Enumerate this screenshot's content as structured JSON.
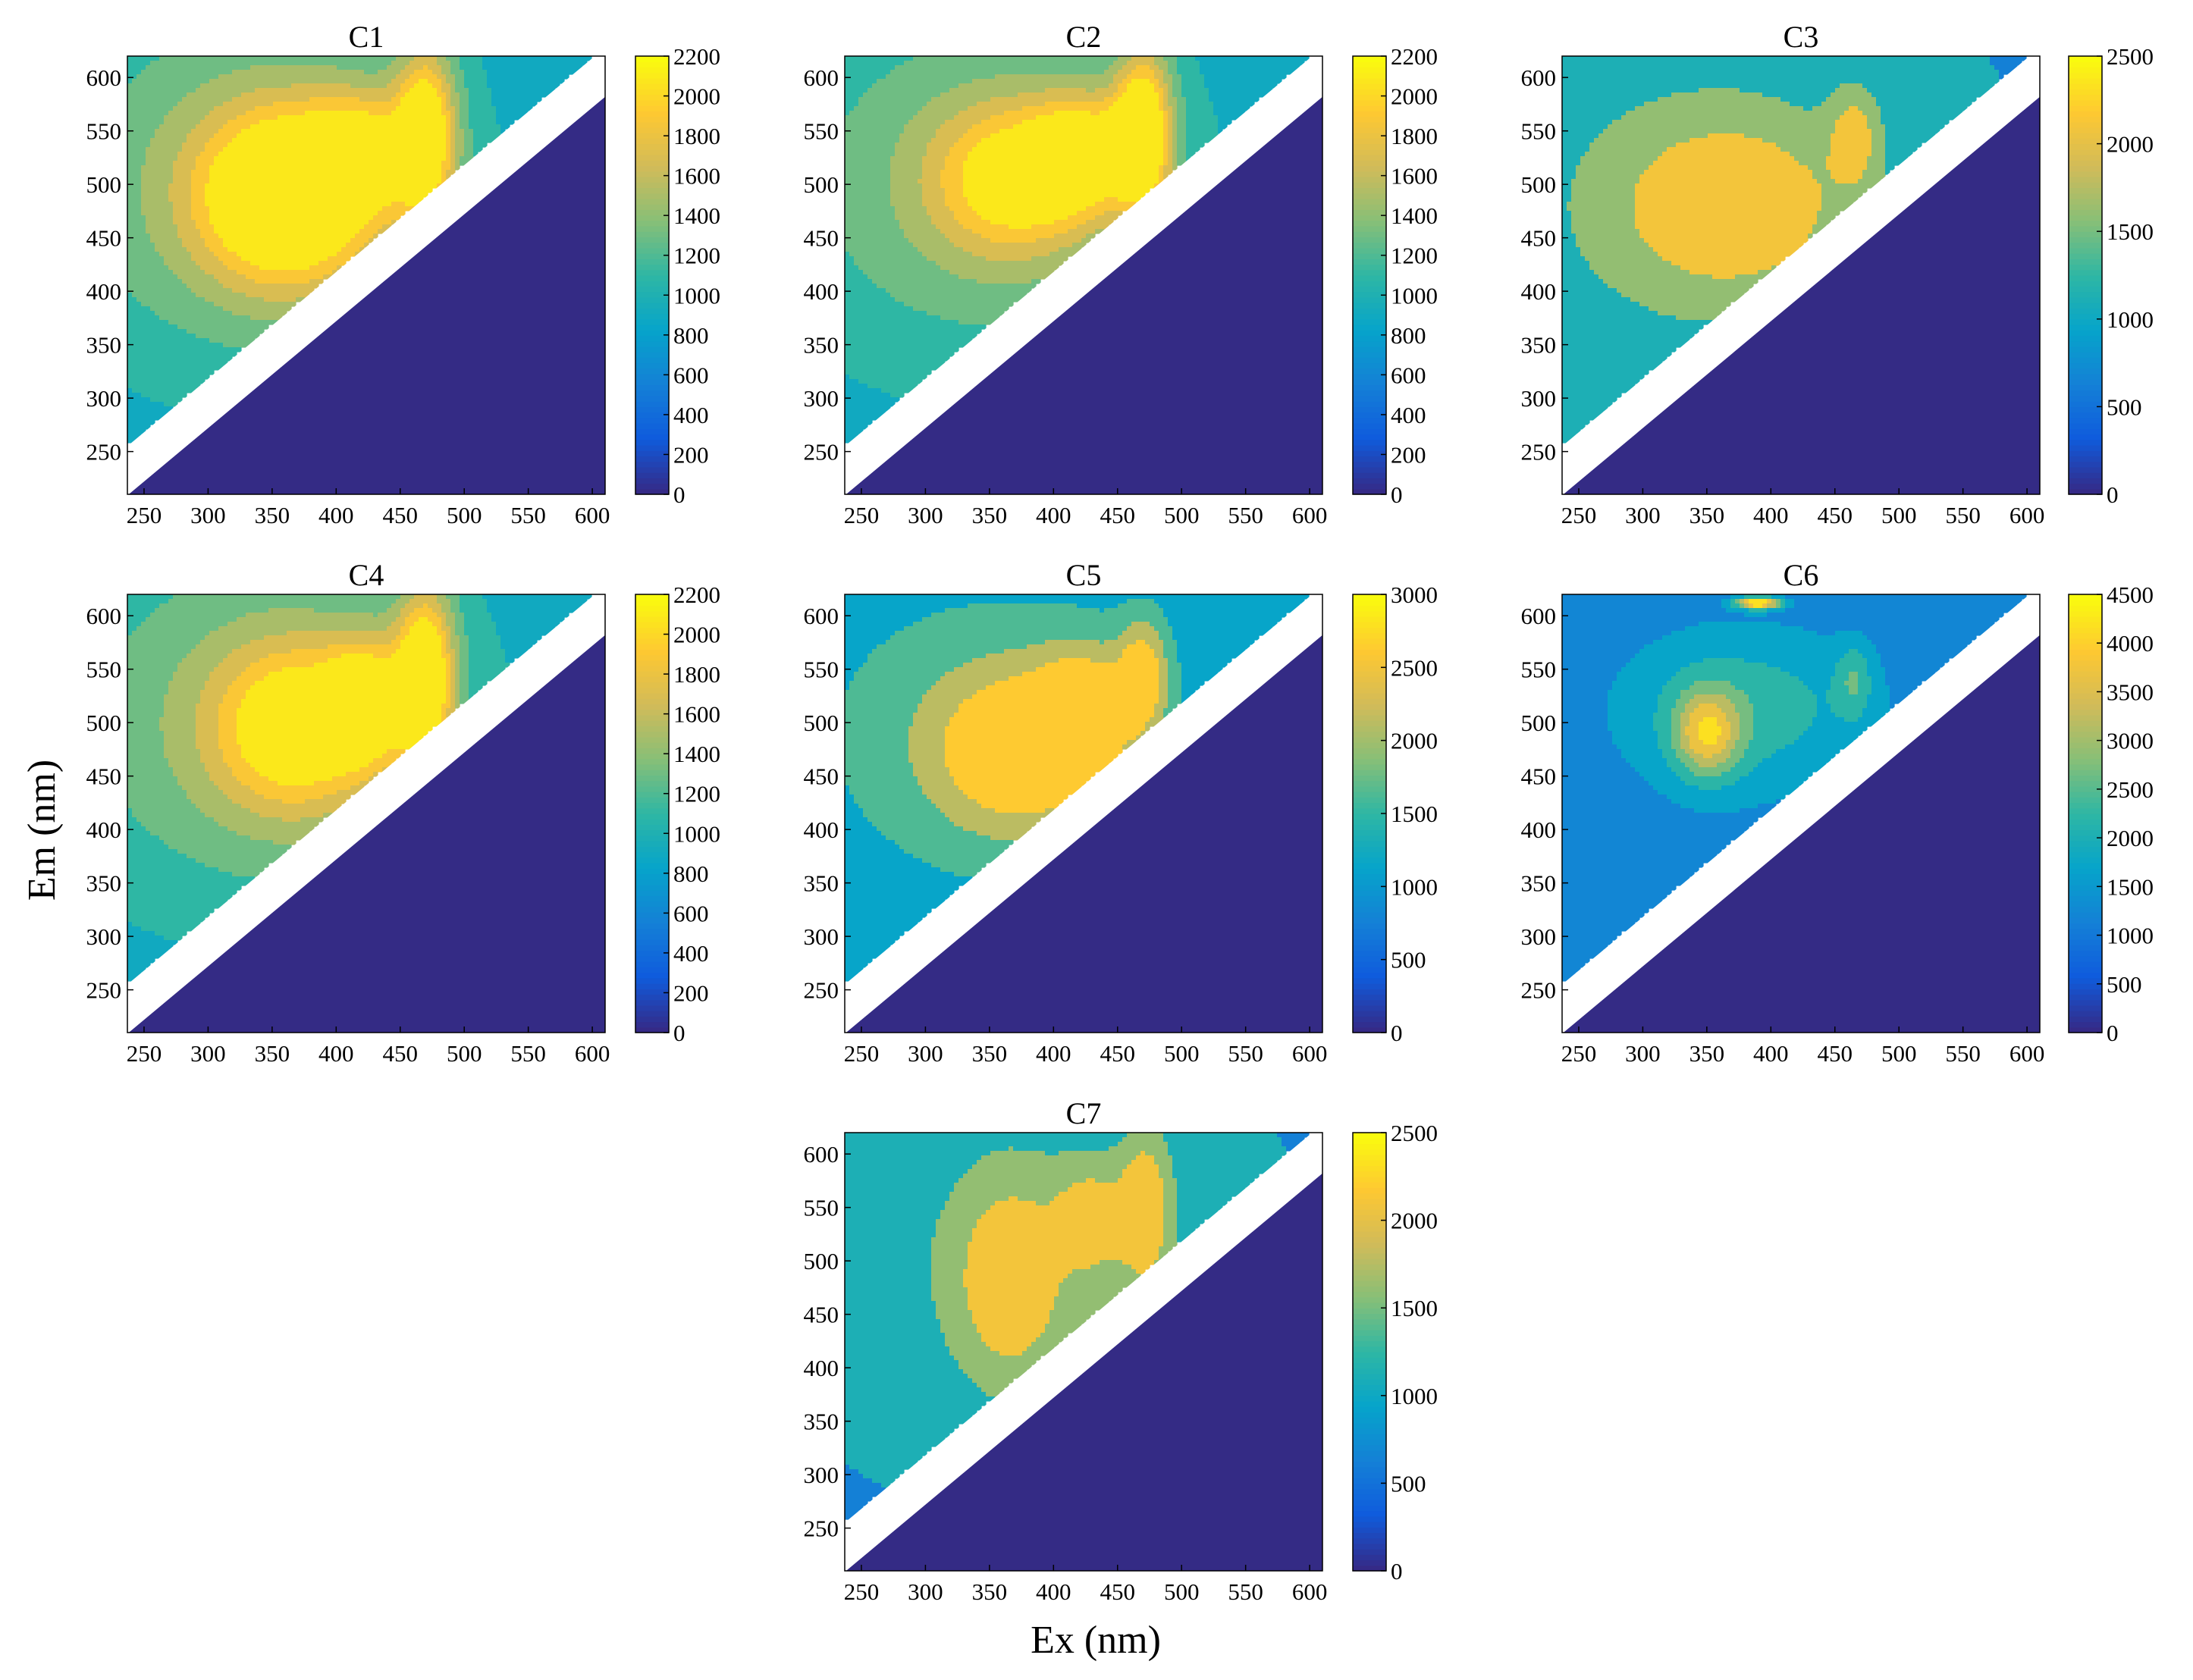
{
  "figure": {
    "xlabel": "Ex (nm)",
    "ylabel": "Em (nm)"
  },
  "colors": {
    "colormap": [
      "#352a87",
      "#0f5cdd",
      "#1481d6",
      "#06a4ca",
      "#2eb7a4",
      "#87bf77",
      "#d1bb59",
      "#fec832",
      "#f9fb0e"
    ],
    "masked_region": "#342b85",
    "gap_band": "#ffffff",
    "contour_line": "#1a1a1a"
  },
  "chart_data": [
    {
      "type": "heatmap",
      "subtype": "contour (EEM fluorescence component)",
      "title": "C1",
      "xlim": [
        237,
        610
      ],
      "ylim": [
        210,
        620
      ],
      "xticks": [
        "250",
        "300",
        "350",
        "400",
        "450",
        "500",
        "550",
        "600"
      ],
      "yticks": [
        "250",
        "300",
        "350",
        "400",
        "450",
        "500",
        "550",
        "600"
      ],
      "xtick_values": [
        250,
        300,
        350,
        400,
        450,
        500,
        550,
        600
      ],
      "ytick_values": [
        250,
        300,
        350,
        400,
        450,
        500,
        550,
        600
      ],
      "colorbar": {
        "min": 0,
        "max": 2200,
        "ticks": [
          "0",
          "200",
          "400",
          "600",
          "800",
          "1000",
          "1200",
          "1400",
          "1600",
          "1800",
          "2000",
          "2200"
        ],
        "tick_values": [
          0,
          200,
          400,
          600,
          800,
          1000,
          1200,
          1400,
          1600,
          1800,
          2000,
          2200
        ]
      },
      "base_level": 850,
      "peaks": [
        {
          "ex": 362,
          "em": 488,
          "value": 2220,
          "sx": 48,
          "sy": 58
        },
        {
          "ex": 470,
          "em": 548,
          "value": 2080,
          "sx": 17,
          "sy": 58
        },
        {
          "ex": 420,
          "em": 530,
          "value": 1620,
          "sx": 28,
          "sy": 40
        },
        {
          "ex": 330,
          "em": 500,
          "value": 1450,
          "sx": 120,
          "sy": 130
        }
      ]
    },
    {
      "type": "heatmap",
      "subtype": "contour (EEM fluorescence component)",
      "title": "C2",
      "xlim": [
        237,
        610
      ],
      "ylim": [
        210,
        620
      ],
      "xticks": [
        "250",
        "300",
        "350",
        "400",
        "450",
        "500",
        "550",
        "600"
      ],
      "yticks": [
        "250",
        "300",
        "350",
        "400",
        "450",
        "500",
        "550",
        "600"
      ],
      "xtick_values": [
        250,
        300,
        350,
        400,
        450,
        500,
        550,
        600
      ],
      "ytick_values": [
        250,
        300,
        350,
        400,
        450,
        500,
        550,
        600
      ],
      "colorbar": {
        "min": 0,
        "max": 2200,
        "ticks": [
          "0",
          "200",
          "400",
          "600",
          "800",
          "1000",
          "1200",
          "1400",
          "1600",
          "1800",
          "2000",
          "2200"
        ],
        "tick_values": [
          0,
          200,
          400,
          600,
          800,
          1000,
          1200,
          1400,
          1600,
          1800,
          2000,
          2200
        ]
      },
      "base_level": 850,
      "peaks": [
        {
          "ex": 370,
          "em": 505,
          "value": 1780,
          "sx": 45,
          "sy": 50
        },
        {
          "ex": 470,
          "em": 550,
          "value": 2150,
          "sx": 16,
          "sy": 55
        },
        {
          "ex": 425,
          "em": 530,
          "value": 1750,
          "sx": 28,
          "sy": 38
        },
        {
          "ex": 340,
          "em": 500,
          "value": 1400,
          "sx": 120,
          "sy": 130
        }
      ]
    },
    {
      "type": "heatmap",
      "subtype": "contour (EEM fluorescence component)",
      "title": "C3",
      "xlim": [
        237,
        610
      ],
      "ylim": [
        210,
        620
      ],
      "xticks": [
        "250",
        "300",
        "350",
        "400",
        "450",
        "500",
        "550",
        "600"
      ],
      "yticks": [
        "250",
        "300",
        "350",
        "400",
        "450",
        "500",
        "550",
        "600"
      ],
      "xtick_values": [
        250,
        300,
        350,
        400,
        450,
        500,
        550,
        600
      ],
      "ytick_values": [
        250,
        300,
        350,
        400,
        450,
        500,
        550,
        600
      ],
      "colorbar": {
        "min": 0,
        "max": 2500,
        "ticks": [
          "0",
          "500",
          "1000",
          "1500",
          "2000",
          "2500"
        ],
        "tick_values": [
          0,
          500,
          1000,
          1500,
          2000,
          2500
        ]
      },
      "base_level": 950,
      "peaks": [
        {
          "ex": 370,
          "em": 480,
          "value": 2100,
          "sx": 60,
          "sy": 55
        },
        {
          "ex": 465,
          "em": 545,
          "value": 1950,
          "sx": 14,
          "sy": 32
        },
        {
          "ex": 340,
          "em": 480,
          "value": 1550,
          "sx": 120,
          "sy": 120
        }
      ]
    },
    {
      "type": "heatmap",
      "subtype": "contour (EEM fluorescence component)",
      "title": "C4",
      "xlim": [
        237,
        610
      ],
      "ylim": [
        210,
        620
      ],
      "xticks": [
        "250",
        "300",
        "350",
        "400",
        "450",
        "500",
        "550",
        "600"
      ],
      "yticks": [
        "250",
        "300",
        "350",
        "400",
        "450",
        "500",
        "550",
        "600"
      ],
      "xtick_values": [
        250,
        300,
        350,
        400,
        450,
        500,
        550,
        600
      ],
      "ytick_values": [
        250,
        300,
        350,
        400,
        450,
        500,
        550,
        600
      ],
      "colorbar": {
        "min": 0,
        "max": 2200,
        "ticks": [
          "0",
          "200",
          "400",
          "600",
          "800",
          "1000",
          "1200",
          "1400",
          "1600",
          "1800",
          "2000",
          "2200"
        ],
        "tick_values": [
          0,
          200,
          400,
          600,
          800,
          1000,
          1200,
          1400,
          1600,
          1800,
          2000,
          2200
        ]
      },
      "base_level": 850,
      "peaks": [
        {
          "ex": 370,
          "em": 495,
          "value": 1850,
          "sx": 45,
          "sy": 55
        },
        {
          "ex": 470,
          "em": 545,
          "value": 2150,
          "sx": 16,
          "sy": 58
        },
        {
          "ex": 425,
          "em": 520,
          "value": 1750,
          "sx": 22,
          "sy": 40
        },
        {
          "ex": 340,
          "em": 500,
          "value": 1450,
          "sx": 120,
          "sy": 130
        }
      ]
    },
    {
      "type": "heatmap",
      "subtype": "contour (EEM fluorescence component)",
      "title": "C5",
      "xlim": [
        237,
        610
      ],
      "ylim": [
        210,
        620
      ],
      "xticks": [
        "250",
        "300",
        "350",
        "400",
        "450",
        "500",
        "550",
        "600"
      ],
      "yticks": [
        "250",
        "300",
        "350",
        "400",
        "450",
        "500",
        "550",
        "600"
      ],
      "xtick_values": [
        250,
        300,
        350,
        400,
        450,
        500,
        550,
        600
      ],
      "ytick_values": [
        250,
        300,
        350,
        400,
        450,
        500,
        550,
        600
      ],
      "colorbar": {
        "min": 0,
        "max": 3000,
        "ticks": [
          "0",
          "500",
          "1000",
          "1500",
          "2000",
          "2500",
          "3000"
        ],
        "tick_values": [
          0,
          500,
          1000,
          1500,
          2000,
          2500,
          3000
        ]
      },
      "base_level": 950,
      "peaks": [
        {
          "ex": 375,
          "em": 475,
          "value": 2650,
          "sx": 50,
          "sy": 55
        },
        {
          "ex": 470,
          "em": 545,
          "value": 2450,
          "sx": 14,
          "sy": 38
        },
        {
          "ex": 425,
          "em": 515,
          "value": 2250,
          "sx": 25,
          "sy": 40
        },
        {
          "ex": 340,
          "em": 490,
          "value": 1700,
          "sx": 130,
          "sy": 130
        }
      ]
    },
    {
      "type": "heatmap",
      "subtype": "contour (EEM fluorescence component)",
      "title": "C6",
      "xlim": [
        237,
        610
      ],
      "ylim": [
        210,
        620
      ],
      "xticks": [
        "250",
        "300",
        "350",
        "400",
        "450",
        "500",
        "550",
        "600"
      ],
      "yticks": [
        "250",
        "300",
        "350",
        "400",
        "450",
        "500",
        "550",
        "600"
      ],
      "xtick_values": [
        250,
        300,
        350,
        400,
        450,
        500,
        550,
        600
      ],
      "ytick_values": [
        250,
        300,
        350,
        400,
        450,
        500,
        550,
        600
      ],
      "colorbar": {
        "min": 0,
        "max": 4500,
        "ticks": [
          "0",
          "500",
          "1000",
          "1500",
          "2000",
          "2500",
          "3000",
          "3500",
          "4000",
          "4500"
        ],
        "tick_values": [
          0,
          500,
          1000,
          1500,
          2000,
          2500,
          3000,
          3500,
          4000,
          4500
        ]
      },
      "base_level": 1050,
      "peaks": [
        {
          "ex": 350,
          "em": 490,
          "value": 3150,
          "sx": 18,
          "sy": 28
        },
        {
          "ex": 390,
          "em": 612,
          "value": 4500,
          "sx": 12,
          "sy": 4
        },
        {
          "ex": 465,
          "em": 540,
          "value": 1980,
          "sx": 10,
          "sy": 25
        },
        {
          "ex": 365,
          "em": 500,
          "value": 1750,
          "sx": 70,
          "sy": 70
        },
        {
          "ex": 400,
          "em": 520,
          "value": 1650,
          "sx": 80,
          "sy": 50
        }
      ]
    },
    {
      "type": "heatmap",
      "subtype": "contour (EEM fluorescence component)",
      "title": "C7",
      "xlim": [
        237,
        610
      ],
      "ylim": [
        210,
        620
      ],
      "xticks": [
        "250",
        "300",
        "350",
        "400",
        "450",
        "500",
        "550",
        "600"
      ],
      "yticks": [
        "250",
        "300",
        "350",
        "400",
        "450",
        "500",
        "550",
        "600"
      ],
      "xtick_values": [
        250,
        300,
        350,
        400,
        450,
        500,
        550,
        600
      ],
      "ytick_values": [
        250,
        300,
        350,
        400,
        450,
        500,
        550,
        600
      ],
      "colorbar": {
        "min": 0,
        "max": 2500,
        "ticks": [
          "0",
          "500",
          "1000",
          "1500",
          "2000",
          "2500"
        ],
        "tick_values": [
          0,
          500,
          1000,
          1500,
          2000,
          2500
        ]
      },
      "base_level": 950,
      "peaks": [
        {
          "ex": 365,
          "em": 480,
          "value": 2050,
          "sx": 28,
          "sy": 65
        },
        {
          "ex": 472,
          "em": 550,
          "value": 2250,
          "sx": 14,
          "sy": 50
        },
        {
          "ex": 430,
          "em": 540,
          "value": 1950,
          "sx": 20,
          "sy": 35
        },
        {
          "ex": 380,
          "em": 500,
          "value": 1550,
          "sx": 100,
          "sy": 110
        }
      ]
    }
  ]
}
